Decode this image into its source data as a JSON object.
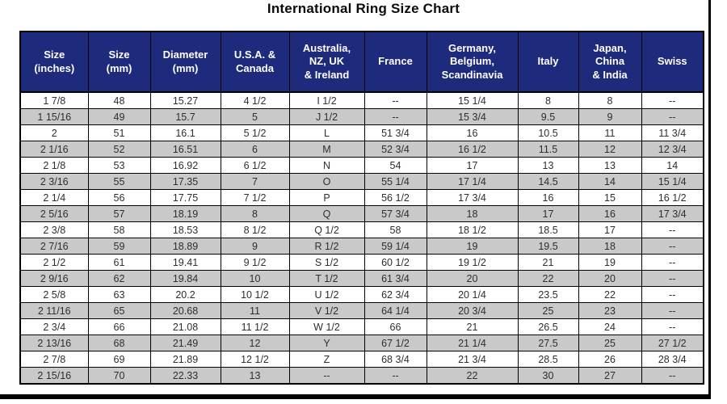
{
  "title": "International Ring Size Chart",
  "colors": {
    "header_bg": "#1e2b7d",
    "header_text": "#ffffff",
    "row_alt_bg": "#c9c9c9",
    "border": "#000000",
    "cell_text": "#2e2e2e"
  },
  "chart_data": {
    "type": "table",
    "title": "International Ring Size Chart",
    "columns": [
      "Size\n(inches)",
      "Size\n(mm)",
      "Diameter\n(mm)",
      "U.S.A. &\nCanada",
      "Australia,\nNZ, UK\n& Ireland",
      "France",
      "Germany,\nBelgium,\nScandinavia",
      "Italy",
      "Japan,\nChina\n& India",
      "Swiss"
    ],
    "rows": [
      [
        "1 7/8",
        "48",
        "15.27",
        "4 1/2",
        "I 1/2",
        "--",
        "15 1/4",
        "8",
        "8",
        "--"
      ],
      [
        "1 15/16",
        "49",
        "15.7",
        "5",
        "J 1/2",
        "--",
        "15 3/4",
        "9.5",
        "9",
        "--"
      ],
      [
        "2",
        "51",
        "16.1",
        "5 1/2",
        "L",
        "51 3/4",
        "16",
        "10.5",
        "11",
        "11 3/4"
      ],
      [
        "2 1/16",
        "52",
        "16.51",
        "6",
        "M",
        "52 3/4",
        "16 1/2",
        "11.5",
        "12",
        "12 3/4"
      ],
      [
        "2 1/8",
        "53",
        "16.92",
        "6 1/2",
        "N",
        "54",
        "17",
        "13",
        "13",
        "14"
      ],
      [
        "2 3/16",
        "55",
        "17.35",
        "7",
        "O",
        "55 1/4",
        "17 1/4",
        "14.5",
        "14",
        "15 1/4"
      ],
      [
        "2 1/4",
        "56",
        "17.75",
        "7 1/2",
        "P",
        "56 1/2",
        "17 3/4",
        "16",
        "15",
        "16 1/2"
      ],
      [
        "2 5/16",
        "57",
        "18.19",
        "8",
        "Q",
        "57 3/4",
        "18",
        "17",
        "16",
        "17 3/4"
      ],
      [
        "2 3/8",
        "58",
        "18.53",
        "8 1/2",
        "Q 1/2",
        "58",
        "18 1/2",
        "18.5",
        "17",
        "--"
      ],
      [
        "2 7/16",
        "59",
        "18.89",
        "9",
        "R 1/2",
        "59 1/4",
        "19",
        "19.5",
        "18",
        "--"
      ],
      [
        "2 1/2",
        "61",
        "19.41",
        "9 1/2",
        "S 1/2",
        "60 1/2",
        "19 1/2",
        "21",
        "19",
        "--"
      ],
      [
        "2 9/16",
        "62",
        "19.84",
        "10",
        "T 1/2",
        "61 3/4",
        "20",
        "22",
        "20",
        "--"
      ],
      [
        "2 5/8",
        "63",
        "20.2",
        "10 1/2",
        "U 1/2",
        "62 3/4",
        "20 1/4",
        "23.5",
        "22",
        "--"
      ],
      [
        "2 11/16",
        "65",
        "20.68",
        "11",
        "V 1/2",
        "64 1/4",
        "20 3/4",
        "25",
        "23",
        "--"
      ],
      [
        "2 3/4",
        "66",
        "21.08",
        "11 1/2",
        "W 1/2",
        "66",
        "21",
        "26.5",
        "24",
        "--"
      ],
      [
        "2 13/16",
        "68",
        "21.49",
        "12",
        "Y",
        "67 1/2",
        "21 1/4",
        "27.5",
        "25",
        "27 1/2"
      ],
      [
        "2 7/8",
        "69",
        "21.89",
        "12 1/2",
        "Z",
        "68 3/4",
        "21 3/4",
        "28.5",
        "26",
        "28 3/4"
      ],
      [
        "2 15/16",
        "70",
        "22.33",
        "13",
        "--",
        "--",
        "22",
        "30",
        "27",
        "--"
      ]
    ]
  }
}
